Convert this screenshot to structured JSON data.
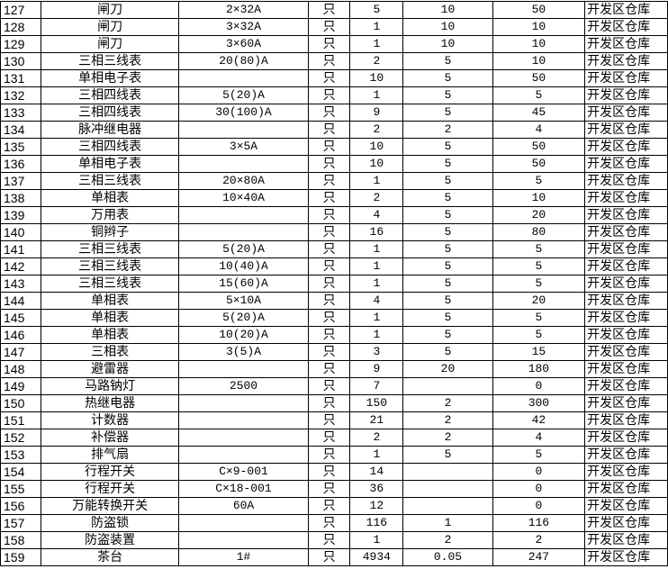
{
  "rows": [
    {
      "no": "127",
      "name": "闸刀",
      "spec": "2×32A",
      "unit": "只",
      "qty": "5",
      "price": "10",
      "amount": "50",
      "location": "开发区仓库"
    },
    {
      "no": "128",
      "name": "闸刀",
      "spec": "3×32A",
      "unit": "只",
      "qty": "1",
      "price": "10",
      "amount": "10",
      "location": "开发区仓库"
    },
    {
      "no": "129",
      "name": "闸刀",
      "spec": "3×60A",
      "unit": "只",
      "qty": "1",
      "price": "10",
      "amount": "10",
      "location": "开发区仓库"
    },
    {
      "no": "130",
      "name": "三相三线表",
      "spec": "20(80)A",
      "unit": "只",
      "qty": "2",
      "price": "5",
      "amount": "10",
      "location": "开发区仓库"
    },
    {
      "no": "131",
      "name": "单相电子表",
      "spec": "",
      "unit": "只",
      "qty": "10",
      "price": "5",
      "amount": "50",
      "location": "开发区仓库"
    },
    {
      "no": "132",
      "name": "三相四线表",
      "spec": "5(20)A",
      "unit": "只",
      "qty": "1",
      "price": "5",
      "amount": "5",
      "location": "开发区仓库"
    },
    {
      "no": "133",
      "name": "三相四线表",
      "spec": "30(100)A",
      "unit": "只",
      "qty": "9",
      "price": "5",
      "amount": "45",
      "location": "开发区仓库"
    },
    {
      "no": "134",
      "name": "脉冲继电器",
      "spec": "",
      "unit": "只",
      "qty": "2",
      "price": "2",
      "amount": "4",
      "location": "开发区仓库"
    },
    {
      "no": "135",
      "name": "三相四线表",
      "spec": "3×5A",
      "unit": "只",
      "qty": "10",
      "price": "5",
      "amount": "50",
      "location": "开发区仓库"
    },
    {
      "no": "136",
      "name": "单相电子表",
      "spec": "",
      "unit": "只",
      "qty": "10",
      "price": "5",
      "amount": "50",
      "location": "开发区仓库"
    },
    {
      "no": "137",
      "name": "三相三线表",
      "spec": "20×80A",
      "unit": "只",
      "qty": "1",
      "price": "5",
      "amount": "5",
      "location": "开发区仓库"
    },
    {
      "no": "138",
      "name": "单相表",
      "spec": "10×40A",
      "unit": "只",
      "qty": "2",
      "price": "5",
      "amount": "10",
      "location": "开发区仓库"
    },
    {
      "no": "139",
      "name": "万用表",
      "spec": "",
      "unit": "只",
      "qty": "4",
      "price": "5",
      "amount": "20",
      "location": "开发区仓库"
    },
    {
      "no": "140",
      "name": "铜辫子",
      "spec": "",
      "unit": "只",
      "qty": "16",
      "price": "5",
      "amount": "80",
      "location": "开发区仓库"
    },
    {
      "no": "141",
      "name": "三相三线表",
      "spec": "5(20)A",
      "unit": "只",
      "qty": "1",
      "price": "5",
      "amount": "5",
      "location": "开发区仓库"
    },
    {
      "no": "142",
      "name": "三相三线表",
      "spec": "10(40)A",
      "unit": "只",
      "qty": "1",
      "price": "5",
      "amount": "5",
      "location": "开发区仓库"
    },
    {
      "no": "143",
      "name": "三相三线表",
      "spec": "15(60)A",
      "unit": "只",
      "qty": "1",
      "price": "5",
      "amount": "5",
      "location": "开发区仓库"
    },
    {
      "no": "144",
      "name": "单相表",
      "spec": "5×10A",
      "unit": "只",
      "qty": "4",
      "price": "5",
      "amount": "20",
      "location": "开发区仓库"
    },
    {
      "no": "145",
      "name": "单相表",
      "spec": "5(20)A",
      "unit": "只",
      "qty": "1",
      "price": "5",
      "amount": "5",
      "location": "开发区仓库"
    },
    {
      "no": "146",
      "name": "单相表",
      "spec": "10(20)A",
      "unit": "只",
      "qty": "1",
      "price": "5",
      "amount": "5",
      "location": "开发区仓库"
    },
    {
      "no": "147",
      "name": "三相表",
      "spec": "3(5)A",
      "unit": "只",
      "qty": "3",
      "price": "5",
      "amount": "15",
      "location": "开发区仓库"
    },
    {
      "no": "148",
      "name": "避雷器",
      "spec": "",
      "unit": "只",
      "qty": "9",
      "price": "20",
      "amount": "180",
      "location": "开发区仓库"
    },
    {
      "no": "149",
      "name": "马路钠灯",
      "spec": "2500",
      "unit": "只",
      "qty": "7",
      "price": "",
      "amount": "0",
      "location": "开发区仓库"
    },
    {
      "no": "150",
      "name": "热继电器",
      "spec": "",
      "unit": "只",
      "qty": "150",
      "price": "2",
      "amount": "300",
      "location": "开发区仓库"
    },
    {
      "no": "151",
      "name": "计数器",
      "spec": "",
      "unit": "只",
      "qty": "21",
      "price": "2",
      "amount": "42",
      "location": "开发区仓库"
    },
    {
      "no": "152",
      "name": "补偿器",
      "spec": "",
      "unit": "只",
      "qty": "2",
      "price": "2",
      "amount": "4",
      "location": "开发区仓库"
    },
    {
      "no": "153",
      "name": "排气扇",
      "spec": "",
      "unit": "只",
      "qty": "1",
      "price": "5",
      "amount": "5",
      "location": "开发区仓库"
    },
    {
      "no": "154",
      "name": "行程开关",
      "spec": "C×9-001",
      "unit": "只",
      "qty": "14",
      "price": "",
      "amount": "0",
      "location": "开发区仓库"
    },
    {
      "no": "155",
      "name": "行程开关",
      "spec": "C×18-001",
      "unit": "只",
      "qty": "36",
      "price": "",
      "amount": "0",
      "location": "开发区仓库"
    },
    {
      "no": "156",
      "name": "万能转换开关",
      "spec": "60A",
      "unit": "只",
      "qty": "12",
      "price": "",
      "amount": "0",
      "location": "开发区仓库"
    },
    {
      "no": "157",
      "name": "防盗锁",
      "spec": "",
      "unit": "只",
      "qty": "116",
      "price": "1",
      "amount": "116",
      "location": "开发区仓库"
    },
    {
      "no": "158",
      "name": "防盗装置",
      "spec": "",
      "unit": "只",
      "qty": "1",
      "price": "2",
      "amount": "2",
      "location": "开发区仓库"
    },
    {
      "no": "159",
      "name": "茶台",
      "spec": "1#",
      "unit": "只",
      "qty": "4934",
      "price": "0.05",
      "amount": "247",
      "location": "开发区仓库"
    }
  ]
}
